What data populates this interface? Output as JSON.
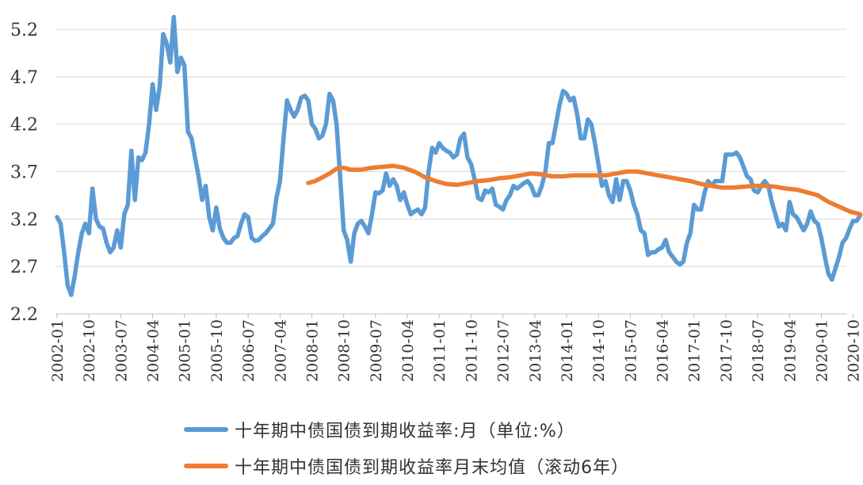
{
  "chart_data": {
    "type": "line",
    "title": "",
    "xlabel": "",
    "ylabel": "",
    "ylim": [
      2.2,
      5.4
    ],
    "y_ticks": [
      "2.2",
      "2.7",
      "3.2",
      "3.7",
      "4.2",
      "4.7",
      "5.2"
    ],
    "x_ticks": [
      "2002-01",
      "2002-10",
      "2003-07",
      "2004-04",
      "2005-01",
      "2005-10",
      "2006-07",
      "2007-04",
      "2008-01",
      "2008-10",
      "2009-07",
      "2010-04",
      "2011-01",
      "2011-10",
      "2012-07",
      "2013-04",
      "2014-01",
      "2014-10",
      "2015-07",
      "2016-04",
      "2017-01",
      "2017-10",
      "2018-07",
      "2019-04",
      "2020-01",
      "2020-10"
    ],
    "grid": "horizontal",
    "legend_position": "bottom",
    "series": [
      {
        "name": "十年期中债国债到期收益率:月（单位:%）",
        "color": "#5b9bd5",
        "points": [
          [
            "2002-01",
            3.22
          ],
          [
            "2002-02",
            3.15
          ],
          [
            "2002-03",
            2.85
          ],
          [
            "2002-04",
            2.5
          ],
          [
            "2002-05",
            2.4
          ],
          [
            "2002-06",
            2.6
          ],
          [
            "2002-07",
            2.85
          ],
          [
            "2002-08",
            3.05
          ],
          [
            "2002-09",
            3.15
          ],
          [
            "2002-10",
            3.05
          ],
          [
            "2002-11",
            3.52
          ],
          [
            "2002-12",
            3.2
          ],
          [
            "2003-01",
            3.12
          ],
          [
            "2003-02",
            3.1
          ],
          [
            "2003-03",
            2.95
          ],
          [
            "2003-04",
            2.85
          ],
          [
            "2003-05",
            2.9
          ],
          [
            "2003-06",
            3.08
          ],
          [
            "2003-07",
            2.9
          ],
          [
            "2003-08",
            3.25
          ],
          [
            "2003-09",
            3.35
          ],
          [
            "2003-10",
            3.92
          ],
          [
            "2003-11",
            3.4
          ],
          [
            "2003-12",
            3.85
          ],
          [
            "2004-01",
            3.82
          ],
          [
            "2004-02",
            3.9
          ],
          [
            "2004-03",
            4.2
          ],
          [
            "2004-04",
            4.62
          ],
          [
            "2004-05",
            4.35
          ],
          [
            "2004-06",
            4.6
          ],
          [
            "2004-07",
            5.15
          ],
          [
            "2004-08",
            5.05
          ],
          [
            "2004-09",
            4.85
          ],
          [
            "2004-10",
            5.33
          ],
          [
            "2004-11",
            4.75
          ],
          [
            "2004-12",
            4.9
          ],
          [
            "2005-01",
            4.82
          ],
          [
            "2005-02",
            4.12
          ],
          [
            "2005-03",
            4.05
          ],
          [
            "2005-04",
            3.85
          ],
          [
            "2005-05",
            3.65
          ],
          [
            "2005-06",
            3.4
          ],
          [
            "2005-07",
            3.55
          ],
          [
            "2005-08",
            3.22
          ],
          [
            "2005-09",
            3.08
          ],
          [
            "2005-10",
            3.32
          ],
          [
            "2005-11",
            3.1
          ],
          [
            "2005-12",
            3.0
          ],
          [
            "2006-01",
            2.95
          ],
          [
            "2006-02",
            2.95
          ],
          [
            "2006-03",
            3.0
          ],
          [
            "2006-04",
            3.02
          ],
          [
            "2006-05",
            3.15
          ],
          [
            "2006-06",
            3.25
          ],
          [
            "2006-07",
            3.22
          ],
          [
            "2006-08",
            3.0
          ],
          [
            "2006-09",
            2.97
          ],
          [
            "2006-10",
            2.98
          ],
          [
            "2006-11",
            3.02
          ],
          [
            "2006-12",
            3.05
          ],
          [
            "2007-01",
            3.1
          ],
          [
            "2007-02",
            3.15
          ],
          [
            "2007-03",
            3.42
          ],
          [
            "2007-04",
            3.6
          ],
          [
            "2007-05",
            4.05
          ],
          [
            "2007-06",
            4.45
          ],
          [
            "2007-07",
            4.35
          ],
          [
            "2007-08",
            4.28
          ],
          [
            "2007-09",
            4.35
          ],
          [
            "2007-10",
            4.48
          ],
          [
            "2007-11",
            4.5
          ],
          [
            "2007-12",
            4.45
          ],
          [
            "2008-01",
            4.2
          ],
          [
            "2008-02",
            4.15
          ],
          [
            "2008-03",
            4.05
          ],
          [
            "2008-04",
            4.08
          ],
          [
            "2008-05",
            4.2
          ],
          [
            "2008-06",
            4.52
          ],
          [
            "2008-07",
            4.45
          ],
          [
            "2008-08",
            4.2
          ],
          [
            "2008-09",
            3.65
          ],
          [
            "2008-10",
            3.08
          ],
          [
            "2008-11",
            2.98
          ],
          [
            "2008-12",
            2.75
          ],
          [
            "2009-01",
            3.05
          ],
          [
            "2009-02",
            3.15
          ],
          [
            "2009-03",
            3.18
          ],
          [
            "2009-04",
            3.12
          ],
          [
            "2009-05",
            3.05
          ],
          [
            "2009-06",
            3.25
          ],
          [
            "2009-07",
            3.48
          ],
          [
            "2009-08",
            3.47
          ],
          [
            "2009-09",
            3.5
          ],
          [
            "2009-10",
            3.68
          ],
          [
            "2009-11",
            3.55
          ],
          [
            "2009-12",
            3.62
          ],
          [
            "2010-01",
            3.55
          ],
          [
            "2010-02",
            3.4
          ],
          [
            "2010-03",
            3.48
          ],
          [
            "2010-04",
            3.35
          ],
          [
            "2010-05",
            3.25
          ],
          [
            "2010-06",
            3.28
          ],
          [
            "2010-07",
            3.3
          ],
          [
            "2010-08",
            3.25
          ],
          [
            "2010-09",
            3.32
          ],
          [
            "2010-10",
            3.7
          ],
          [
            "2010-11",
            3.95
          ],
          [
            "2010-12",
            3.9
          ],
          [
            "2011-01",
            4.0
          ],
          [
            "2011-02",
            3.95
          ],
          [
            "2011-03",
            3.92
          ],
          [
            "2011-04",
            3.9
          ],
          [
            "2011-05",
            3.85
          ],
          [
            "2011-06",
            3.88
          ],
          [
            "2011-07",
            4.05
          ],
          [
            "2011-08",
            4.1
          ],
          [
            "2011-09",
            3.85
          ],
          [
            "2011-10",
            3.78
          ],
          [
            "2011-11",
            3.62
          ],
          [
            "2011-12",
            3.42
          ],
          [
            "2012-01",
            3.4
          ],
          [
            "2012-02",
            3.5
          ],
          [
            "2012-03",
            3.48
          ],
          [
            "2012-04",
            3.52
          ],
          [
            "2012-05",
            3.35
          ],
          [
            "2012-06",
            3.33
          ],
          [
            "2012-07",
            3.3
          ],
          [
            "2012-08",
            3.4
          ],
          [
            "2012-09",
            3.45
          ],
          [
            "2012-10",
            3.55
          ],
          [
            "2012-11",
            3.52
          ],
          [
            "2012-12",
            3.55
          ],
          [
            "2013-01",
            3.58
          ],
          [
            "2013-02",
            3.6
          ],
          [
            "2013-03",
            3.55
          ],
          [
            "2013-04",
            3.45
          ],
          [
            "2013-05",
            3.45
          ],
          [
            "2013-06",
            3.55
          ],
          [
            "2013-07",
            3.7
          ],
          [
            "2013-08",
            4.0
          ],
          [
            "2013-09",
            4.0
          ],
          [
            "2013-10",
            4.2
          ],
          [
            "2013-11",
            4.4
          ],
          [
            "2013-12",
            4.55
          ],
          [
            "2014-01",
            4.52
          ],
          [
            "2014-02",
            4.45
          ],
          [
            "2014-03",
            4.48
          ],
          [
            "2014-04",
            4.3
          ],
          [
            "2014-05",
            4.05
          ],
          [
            "2014-06",
            4.05
          ],
          [
            "2014-07",
            4.25
          ],
          [
            "2014-08",
            4.2
          ],
          [
            "2014-09",
            4.0
          ],
          [
            "2014-10",
            3.78
          ],
          [
            "2014-11",
            3.55
          ],
          [
            "2014-12",
            3.6
          ],
          [
            "2015-01",
            3.45
          ],
          [
            "2015-02",
            3.38
          ],
          [
            "2015-03",
            3.62
          ],
          [
            "2015-04",
            3.4
          ],
          [
            "2015-05",
            3.6
          ],
          [
            "2015-06",
            3.6
          ],
          [
            "2015-07",
            3.5
          ],
          [
            "2015-08",
            3.35
          ],
          [
            "2015-09",
            3.25
          ],
          [
            "2015-10",
            3.08
          ],
          [
            "2015-11",
            3.05
          ],
          [
            "2015-12",
            2.82
          ],
          [
            "2016-01",
            2.85
          ],
          [
            "2016-02",
            2.85
          ],
          [
            "2016-03",
            2.88
          ],
          [
            "2016-04",
            2.9
          ],
          [
            "2016-05",
            2.98
          ],
          [
            "2016-06",
            2.85
          ],
          [
            "2016-07",
            2.8
          ],
          [
            "2016-08",
            2.75
          ],
          [
            "2016-09",
            2.72
          ],
          [
            "2016-10",
            2.75
          ],
          [
            "2016-11",
            2.95
          ],
          [
            "2016-12",
            3.05
          ],
          [
            "2017-01",
            3.35
          ],
          [
            "2017-02",
            3.3
          ],
          [
            "2017-03",
            3.3
          ],
          [
            "2017-04",
            3.48
          ],
          [
            "2017-05",
            3.6
          ],
          [
            "2017-06",
            3.55
          ],
          [
            "2017-07",
            3.6
          ],
          [
            "2017-08",
            3.6
          ],
          [
            "2017-09",
            3.6
          ],
          [
            "2017-10",
            3.88
          ],
          [
            "2017-11",
            3.88
          ],
          [
            "2017-12",
            3.88
          ],
          [
            "2018-01",
            3.9
          ],
          [
            "2018-02",
            3.85
          ],
          [
            "2018-03",
            3.75
          ],
          [
            "2018-04",
            3.65
          ],
          [
            "2018-05",
            3.62
          ],
          [
            "2018-06",
            3.5
          ],
          [
            "2018-07",
            3.48
          ],
          [
            "2018-08",
            3.55
          ],
          [
            "2018-09",
            3.6
          ],
          [
            "2018-10",
            3.55
          ],
          [
            "2018-11",
            3.38
          ],
          [
            "2018-12",
            3.25
          ],
          [
            "2019-01",
            3.12
          ],
          [
            "2019-02",
            3.15
          ],
          [
            "2019-03",
            3.08
          ],
          [
            "2019-04",
            3.38
          ],
          [
            "2019-05",
            3.25
          ],
          [
            "2019-06",
            3.22
          ],
          [
            "2019-07",
            3.15
          ],
          [
            "2019-08",
            3.08
          ],
          [
            "2019-09",
            3.15
          ],
          [
            "2019-10",
            3.28
          ],
          [
            "2019-11",
            3.18
          ],
          [
            "2019-12",
            3.15
          ],
          [
            "2020-01",
            3.0
          ],
          [
            "2020-02",
            2.8
          ],
          [
            "2020-03",
            2.62
          ],
          [
            "2020-04",
            2.56
          ],
          [
            "2020-05",
            2.68
          ],
          [
            "2020-06",
            2.8
          ],
          [
            "2020-07",
            2.95
          ],
          [
            "2020-08",
            3.0
          ],
          [
            "2020-09",
            3.1
          ],
          [
            "2020-10",
            3.18
          ],
          [
            "2020-11",
            3.18
          ],
          [
            "2020-12",
            3.24
          ]
        ]
      },
      {
        "name": "十年期中债国债到期收益率月末均值（滚动6年）",
        "color": "#ed7d31",
        "points": [
          [
            "2007-12",
            3.58
          ],
          [
            "2008-02",
            3.6
          ],
          [
            "2008-04",
            3.64
          ],
          [
            "2008-06",
            3.68
          ],
          [
            "2008-08",
            3.73
          ],
          [
            "2008-10",
            3.74
          ],
          [
            "2008-12",
            3.72
          ],
          [
            "2009-03",
            3.72
          ],
          [
            "2009-06",
            3.74
          ],
          [
            "2009-09",
            3.75
          ],
          [
            "2009-12",
            3.76
          ],
          [
            "2010-03",
            3.74
          ],
          [
            "2010-06",
            3.7
          ],
          [
            "2010-09",
            3.64
          ],
          [
            "2010-12",
            3.6
          ],
          [
            "2011-03",
            3.57
          ],
          [
            "2011-06",
            3.56
          ],
          [
            "2011-09",
            3.58
          ],
          [
            "2011-12",
            3.6
          ],
          [
            "2012-03",
            3.61
          ],
          [
            "2012-06",
            3.63
          ],
          [
            "2012-09",
            3.64
          ],
          [
            "2012-12",
            3.66
          ],
          [
            "2013-03",
            3.68
          ],
          [
            "2013-06",
            3.67
          ],
          [
            "2013-09",
            3.65
          ],
          [
            "2013-12",
            3.65
          ],
          [
            "2014-03",
            3.66
          ],
          [
            "2014-06",
            3.66
          ],
          [
            "2014-09",
            3.66
          ],
          [
            "2014-12",
            3.66
          ],
          [
            "2015-03",
            3.68
          ],
          [
            "2015-06",
            3.7
          ],
          [
            "2015-09",
            3.7
          ],
          [
            "2015-12",
            3.68
          ],
          [
            "2016-03",
            3.66
          ],
          [
            "2016-06",
            3.64
          ],
          [
            "2016-09",
            3.62
          ],
          [
            "2016-12",
            3.6
          ],
          [
            "2017-03",
            3.57
          ],
          [
            "2017-06",
            3.55
          ],
          [
            "2017-09",
            3.53
          ],
          [
            "2017-12",
            3.53
          ],
          [
            "2018-03",
            3.54
          ],
          [
            "2018-06",
            3.55
          ],
          [
            "2018-09",
            3.55
          ],
          [
            "2018-12",
            3.54
          ],
          [
            "2019-03",
            3.52
          ],
          [
            "2019-06",
            3.51
          ],
          [
            "2019-09",
            3.48
          ],
          [
            "2019-12",
            3.45
          ],
          [
            "2020-03",
            3.38
          ],
          [
            "2020-06",
            3.33
          ],
          [
            "2020-09",
            3.28
          ],
          [
            "2020-12",
            3.25
          ]
        ]
      }
    ]
  }
}
